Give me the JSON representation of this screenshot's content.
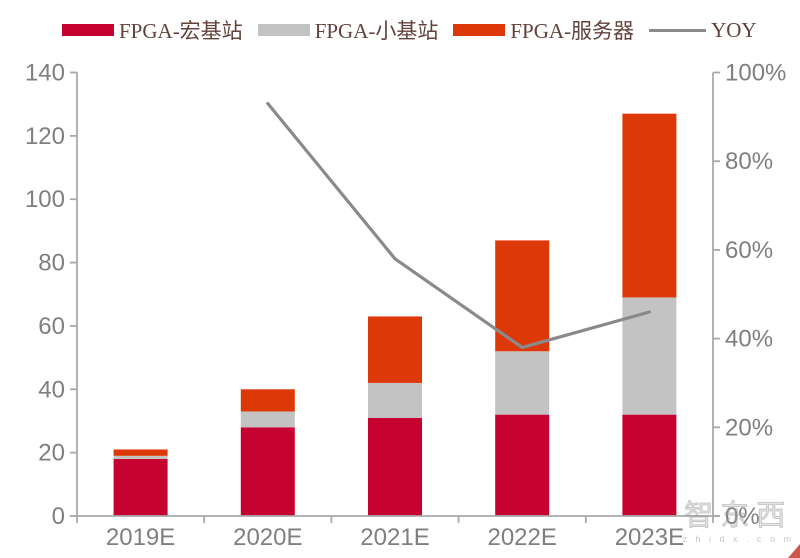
{
  "page": {
    "background": "#ffffff"
  },
  "legend": {
    "text_color": "#63423d",
    "items": [
      {
        "label": "FPGA-宏基站",
        "swatch": "rect",
        "color": "#c50230"
      },
      {
        "label": "FPGA-小基站",
        "swatch": "rect",
        "color": "#c3c3c3"
      },
      {
        "label": "FPGA-服务器",
        "swatch": "rect",
        "color": "#dd3908"
      },
      {
        "label": "YOY",
        "swatch": "line",
        "color": "#8a8a8a"
      }
    ]
  },
  "chart_data": {
    "type": "combo",
    "subtypes": [
      "stacked-bar",
      "line"
    ],
    "title": "",
    "categories": [
      "2019E",
      "2020E",
      "2021E",
      "2022E",
      "2023E"
    ],
    "series": [
      {
        "name": "FPGA-宏基站",
        "type": "bar",
        "axis": "left",
        "color": "#c50230",
        "values": [
          18,
          28,
          31,
          32,
          32
        ]
      },
      {
        "name": "FPGA-小基站",
        "type": "bar",
        "axis": "left",
        "color": "#c3c3c3",
        "values": [
          1,
          5,
          11,
          20,
          37
        ]
      },
      {
        "name": "FPGA-服务器",
        "type": "bar",
        "axis": "left",
        "color": "#dd3908",
        "values": [
          2,
          7,
          21,
          35,
          58
        ]
      },
      {
        "name": "YOY",
        "type": "line",
        "axis": "right",
        "color": "#8a8a8a",
        "values": [
          null,
          93,
          58,
          38,
          46
        ]
      }
    ],
    "bar_totals": [
      21,
      40,
      63,
      87,
      127
    ],
    "left_axis": {
      "min": 0,
      "max": 140,
      "step": 20,
      "labels": [
        "0",
        "20",
        "40",
        "60",
        "80",
        "100",
        "120",
        "140"
      ]
    },
    "right_axis": {
      "min": 0,
      "max": 100,
      "step": 20,
      "unit": "%",
      "labels": [
        "0%",
        "20%",
        "40%",
        "60%",
        "80%",
        "100%"
      ]
    },
    "grid": false,
    "legend_position": "top",
    "axis_color": "#a9a9a9",
    "tick_label_color": "#7f7f7f"
  },
  "watermark": {
    "text": "智东西",
    "subtext": "z h i d x . c o m"
  }
}
